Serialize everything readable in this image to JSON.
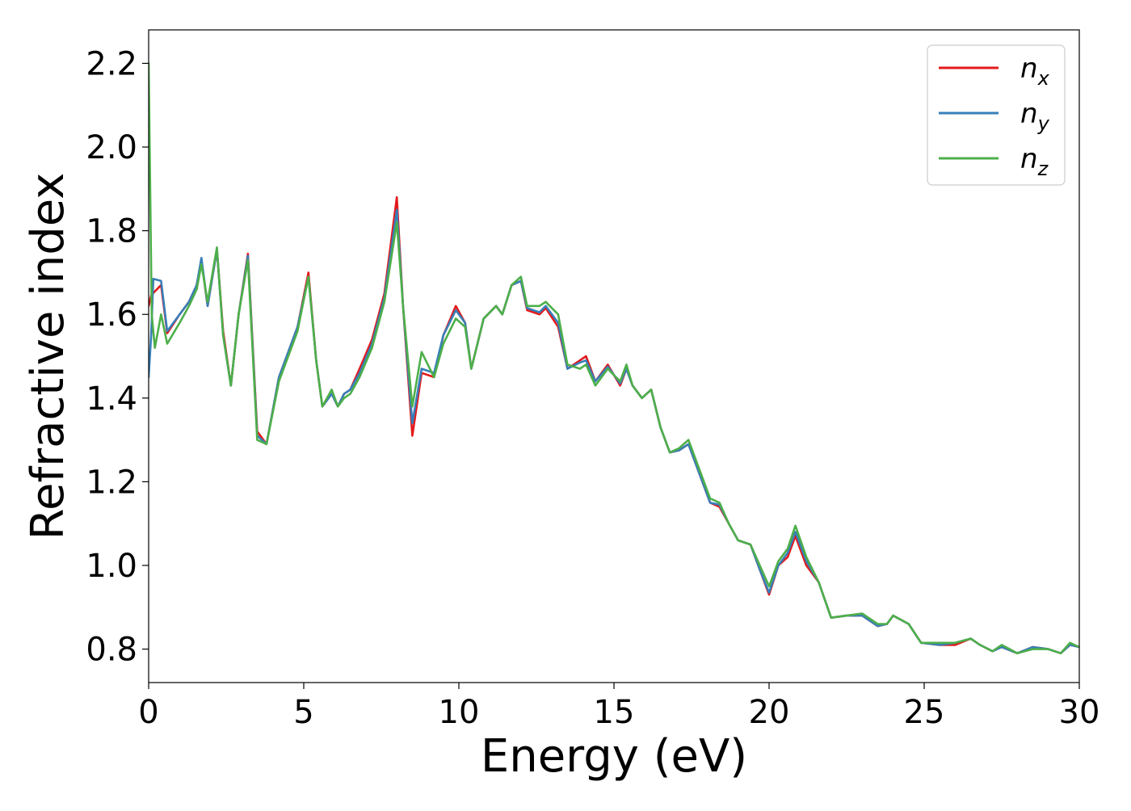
{
  "chart_data": {
    "type": "line",
    "title": "",
    "xlabel": "Energy (eV)",
    "ylabel": "Refractive index",
    "xlim": [
      0,
      30
    ],
    "ylim": [
      0.72,
      2.28
    ],
    "x_ticks": [
      0,
      5,
      10,
      15,
      20,
      25,
      30
    ],
    "x_tick_labels": [
      "0",
      "5",
      "10",
      "15",
      "20",
      "25",
      "30"
    ],
    "y_ticks": [
      0.8,
      1.0,
      1.2,
      1.4,
      1.6,
      1.8,
      2.0,
      2.2
    ],
    "y_tick_labels": [
      "0.8",
      "1.0",
      "1.2",
      "1.4",
      "1.6",
      "1.8",
      "2.0",
      "2.2"
    ],
    "grid": false,
    "legend": {
      "position": "top-right"
    },
    "series": [
      {
        "name": "n_x",
        "legend_base": "n",
        "legend_sub": "x",
        "color": "#e41a1c",
        "points": [
          [
            0,
            1.62
          ],
          [
            0.08,
            1.645
          ],
          [
            0.2,
            1.655
          ],
          [
            0.4,
            1.67
          ],
          [
            0.6,
            1.555
          ],
          [
            1.0,
            1.6
          ],
          [
            1.3,
            1.63
          ],
          [
            1.55,
            1.67
          ],
          [
            1.7,
            1.73
          ],
          [
            1.9,
            1.62
          ],
          [
            2.2,
            1.755
          ],
          [
            2.4,
            1.56
          ],
          [
            2.65,
            1.43
          ],
          [
            2.9,
            1.6
          ],
          [
            3.2,
            1.745
          ],
          [
            3.5,
            1.32
          ],
          [
            3.8,
            1.29
          ],
          [
            4.2,
            1.45
          ],
          [
            4.8,
            1.57
          ],
          [
            5.15,
            1.7
          ],
          [
            5.4,
            1.49
          ],
          [
            5.6,
            1.38
          ],
          [
            5.9,
            1.41
          ],
          [
            6.1,
            1.38
          ],
          [
            6.3,
            1.41
          ],
          [
            6.5,
            1.42
          ],
          [
            6.8,
            1.47
          ],
          [
            7.2,
            1.54
          ],
          [
            7.6,
            1.65
          ],
          [
            8.0,
            1.88
          ],
          [
            8.2,
            1.62
          ],
          [
            8.5,
            1.31
          ],
          [
            8.8,
            1.46
          ],
          [
            9.2,
            1.45
          ],
          [
            9.5,
            1.55
          ],
          [
            9.9,
            1.62
          ],
          [
            10.2,
            1.58
          ],
          [
            10.4,
            1.47
          ],
          [
            10.8,
            1.59
          ],
          [
            11.2,
            1.62
          ],
          [
            11.4,
            1.6
          ],
          [
            11.7,
            1.67
          ],
          [
            12.0,
            1.68
          ],
          [
            12.2,
            1.61
          ],
          [
            12.6,
            1.6
          ],
          [
            12.8,
            1.615
          ],
          [
            13.2,
            1.57
          ],
          [
            13.5,
            1.47
          ],
          [
            13.9,
            1.49
          ],
          [
            14.1,
            1.5
          ],
          [
            14.4,
            1.44
          ],
          [
            14.8,
            1.48
          ],
          [
            15.2,
            1.43
          ],
          [
            15.4,
            1.47
          ],
          [
            15.6,
            1.43
          ],
          [
            15.9,
            1.4
          ],
          [
            16.2,
            1.42
          ],
          [
            16.5,
            1.33
          ],
          [
            16.8,
            1.27
          ],
          [
            17.1,
            1.275
          ],
          [
            17.4,
            1.29
          ],
          [
            17.8,
            1.21
          ],
          [
            18.1,
            1.15
          ],
          [
            18.4,
            1.14
          ],
          [
            18.7,
            1.1
          ],
          [
            19.0,
            1.06
          ],
          [
            19.4,
            1.05
          ],
          [
            19.7,
            0.99
          ],
          [
            20.0,
            0.93
          ],
          [
            20.3,
            1.0
          ],
          [
            20.6,
            1.02
          ],
          [
            20.85,
            1.07
          ],
          [
            21.2,
            1.0
          ],
          [
            21.6,
            0.96
          ],
          [
            22.0,
            0.875
          ],
          [
            22.5,
            0.88
          ],
          [
            23.0,
            0.88
          ],
          [
            23.5,
            0.855
          ],
          [
            23.8,
            0.86
          ],
          [
            24.0,
            0.88
          ],
          [
            24.5,
            0.86
          ],
          [
            24.9,
            0.815
          ],
          [
            25.5,
            0.81
          ],
          [
            26.0,
            0.81
          ],
          [
            26.5,
            0.825
          ],
          [
            26.8,
            0.81
          ],
          [
            27.2,
            0.795
          ],
          [
            27.5,
            0.805
          ],
          [
            28.0,
            0.79
          ],
          [
            28.5,
            0.805
          ],
          [
            29.0,
            0.8
          ],
          [
            29.4,
            0.79
          ],
          [
            29.7,
            0.81
          ],
          [
            30.0,
            0.805
          ]
        ]
      },
      {
        "name": "n_y",
        "legend_base": "n",
        "legend_sub": "y",
        "color": "#377eb8",
        "points": [
          [
            0,
            1.45
          ],
          [
            0.08,
            1.55
          ],
          [
            0.15,
            1.685
          ],
          [
            0.4,
            1.68
          ],
          [
            0.6,
            1.56
          ],
          [
            1.0,
            1.6
          ],
          [
            1.3,
            1.63
          ],
          [
            1.55,
            1.67
          ],
          [
            1.7,
            1.735
          ],
          [
            1.9,
            1.62
          ],
          [
            2.2,
            1.755
          ],
          [
            2.4,
            1.55
          ],
          [
            2.65,
            1.43
          ],
          [
            2.9,
            1.6
          ],
          [
            3.2,
            1.74
          ],
          [
            3.5,
            1.31
          ],
          [
            3.8,
            1.29
          ],
          [
            4.2,
            1.45
          ],
          [
            4.8,
            1.57
          ],
          [
            5.15,
            1.69
          ],
          [
            5.4,
            1.49
          ],
          [
            5.6,
            1.38
          ],
          [
            5.9,
            1.41
          ],
          [
            6.1,
            1.38
          ],
          [
            6.3,
            1.41
          ],
          [
            6.5,
            1.42
          ],
          [
            6.8,
            1.46
          ],
          [
            7.2,
            1.53
          ],
          [
            7.6,
            1.64
          ],
          [
            8.0,
            1.85
          ],
          [
            8.2,
            1.62
          ],
          [
            8.5,
            1.34
          ],
          [
            8.8,
            1.47
          ],
          [
            9.2,
            1.46
          ],
          [
            9.5,
            1.55
          ],
          [
            9.9,
            1.61
          ],
          [
            10.2,
            1.58
          ],
          [
            10.4,
            1.47
          ],
          [
            10.8,
            1.59
          ],
          [
            11.2,
            1.62
          ],
          [
            11.4,
            1.6
          ],
          [
            11.7,
            1.67
          ],
          [
            12.0,
            1.68
          ],
          [
            12.2,
            1.615
          ],
          [
            12.6,
            1.605
          ],
          [
            12.8,
            1.62
          ],
          [
            13.2,
            1.58
          ],
          [
            13.5,
            1.47
          ],
          [
            13.9,
            1.485
          ],
          [
            14.1,
            1.49
          ],
          [
            14.4,
            1.44
          ],
          [
            14.8,
            1.475
          ],
          [
            15.2,
            1.435
          ],
          [
            15.4,
            1.47
          ],
          [
            15.6,
            1.43
          ],
          [
            15.9,
            1.4
          ],
          [
            16.2,
            1.42
          ],
          [
            16.5,
            1.33
          ],
          [
            16.8,
            1.27
          ],
          [
            17.1,
            1.275
          ],
          [
            17.4,
            1.29
          ],
          [
            17.8,
            1.21
          ],
          [
            18.1,
            1.15
          ],
          [
            18.4,
            1.145
          ],
          [
            18.7,
            1.1
          ],
          [
            19.0,
            1.06
          ],
          [
            19.4,
            1.05
          ],
          [
            19.7,
            0.99
          ],
          [
            20.0,
            0.935
          ],
          [
            20.3,
            1.0
          ],
          [
            20.6,
            1.03
          ],
          [
            20.85,
            1.08
          ],
          [
            21.2,
            1.01
          ],
          [
            21.6,
            0.96
          ],
          [
            22.0,
            0.875
          ],
          [
            22.5,
            0.88
          ],
          [
            23.0,
            0.88
          ],
          [
            23.5,
            0.855
          ],
          [
            23.8,
            0.86
          ],
          [
            24.0,
            0.88
          ],
          [
            24.5,
            0.86
          ],
          [
            24.9,
            0.815
          ],
          [
            25.5,
            0.81
          ],
          [
            26.0,
            0.815
          ],
          [
            26.5,
            0.825
          ],
          [
            26.8,
            0.81
          ],
          [
            27.2,
            0.795
          ],
          [
            27.5,
            0.805
          ],
          [
            28.0,
            0.79
          ],
          [
            28.5,
            0.805
          ],
          [
            29.0,
            0.8
          ],
          [
            29.4,
            0.79
          ],
          [
            29.7,
            0.81
          ],
          [
            30.0,
            0.805
          ]
        ]
      },
      {
        "name": "n_z",
        "legend_base": "n",
        "legend_sub": "z",
        "color": "#4daf4a",
        "points": [
          [
            0,
            2.2
          ],
          [
            0.1,
            1.6
          ],
          [
            0.2,
            1.52
          ],
          [
            0.4,
            1.6
          ],
          [
            0.6,
            1.53
          ],
          [
            1.0,
            1.58
          ],
          [
            1.3,
            1.62
          ],
          [
            1.55,
            1.66
          ],
          [
            1.7,
            1.72
          ],
          [
            1.9,
            1.63
          ],
          [
            2.2,
            1.76
          ],
          [
            2.4,
            1.55
          ],
          [
            2.65,
            1.43
          ],
          [
            2.9,
            1.6
          ],
          [
            3.2,
            1.73
          ],
          [
            3.5,
            1.3
          ],
          [
            3.8,
            1.29
          ],
          [
            4.2,
            1.44
          ],
          [
            4.8,
            1.56
          ],
          [
            5.15,
            1.69
          ],
          [
            5.4,
            1.49
          ],
          [
            5.6,
            1.38
          ],
          [
            5.9,
            1.42
          ],
          [
            6.1,
            1.38
          ],
          [
            6.3,
            1.4
          ],
          [
            6.5,
            1.41
          ],
          [
            6.8,
            1.45
          ],
          [
            7.2,
            1.52
          ],
          [
            7.6,
            1.63
          ],
          [
            8.0,
            1.82
          ],
          [
            8.2,
            1.62
          ],
          [
            8.5,
            1.38
          ],
          [
            8.8,
            1.51
          ],
          [
            9.2,
            1.45
          ],
          [
            9.5,
            1.53
          ],
          [
            9.9,
            1.59
          ],
          [
            10.2,
            1.57
          ],
          [
            10.4,
            1.47
          ],
          [
            10.8,
            1.59
          ],
          [
            11.2,
            1.62
          ],
          [
            11.4,
            1.6
          ],
          [
            11.7,
            1.67
          ],
          [
            12.0,
            1.69
          ],
          [
            12.2,
            1.62
          ],
          [
            12.6,
            1.62
          ],
          [
            12.8,
            1.63
          ],
          [
            13.2,
            1.6
          ],
          [
            13.5,
            1.48
          ],
          [
            13.9,
            1.47
          ],
          [
            14.1,
            1.48
          ],
          [
            14.4,
            1.43
          ],
          [
            14.8,
            1.47
          ],
          [
            15.2,
            1.44
          ],
          [
            15.4,
            1.48
          ],
          [
            15.6,
            1.43
          ],
          [
            15.9,
            1.4
          ],
          [
            16.2,
            1.42
          ],
          [
            16.5,
            1.33
          ],
          [
            16.8,
            1.27
          ],
          [
            17.1,
            1.28
          ],
          [
            17.4,
            1.3
          ],
          [
            17.8,
            1.22
          ],
          [
            18.1,
            1.16
          ],
          [
            18.4,
            1.15
          ],
          [
            18.7,
            1.1
          ],
          [
            19.0,
            1.06
          ],
          [
            19.4,
            1.05
          ],
          [
            19.7,
            1.0
          ],
          [
            20.0,
            0.95
          ],
          [
            20.3,
            1.01
          ],
          [
            20.6,
            1.04
          ],
          [
            20.85,
            1.095
          ],
          [
            21.2,
            1.02
          ],
          [
            21.6,
            0.96
          ],
          [
            22.0,
            0.875
          ],
          [
            22.5,
            0.88
          ],
          [
            23.0,
            0.885
          ],
          [
            23.5,
            0.86
          ],
          [
            23.8,
            0.86
          ],
          [
            24.0,
            0.88
          ],
          [
            24.5,
            0.86
          ],
          [
            24.9,
            0.815
          ],
          [
            25.5,
            0.815
          ],
          [
            26.0,
            0.815
          ],
          [
            26.5,
            0.825
          ],
          [
            26.8,
            0.81
          ],
          [
            27.2,
            0.795
          ],
          [
            27.5,
            0.81
          ],
          [
            28.0,
            0.79
          ],
          [
            28.5,
            0.8
          ],
          [
            29.0,
            0.8
          ],
          [
            29.4,
            0.79
          ],
          [
            29.7,
            0.815
          ],
          [
            30.0,
            0.805
          ]
        ]
      }
    ]
  }
}
